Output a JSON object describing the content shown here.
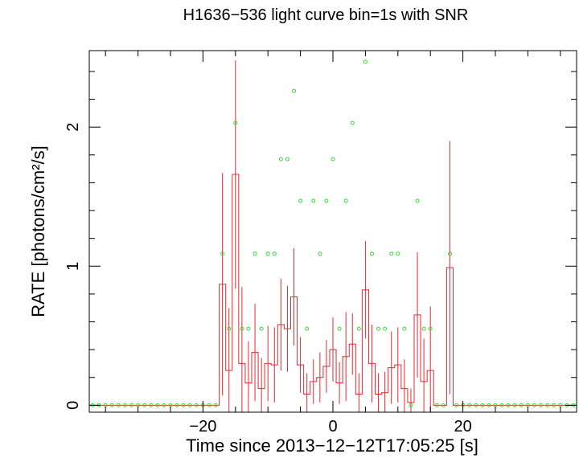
{
  "chart_data": {
    "type": "line",
    "title": "H1636−536 light curve bin=1s with SNR",
    "xlabel": "Time since 2013−12−12T17:05:25 [s]",
    "ylabel": "RATE [photons/cm²/s]",
    "xlim": [
      -37.5,
      37.5
    ],
    "ylim": [
      -0.05,
      2.55
    ],
    "x_ticks": [
      {
        "value": -20,
        "label": "−20"
      },
      {
        "value": 0,
        "label": "0"
      },
      {
        "value": 20,
        "label": "20"
      }
    ],
    "y_ticks": [
      {
        "value": 0,
        "label": "0"
      },
      {
        "value": 1,
        "label": "1"
      },
      {
        "value": 2,
        "label": "2"
      }
    ],
    "grid": false,
    "colors": {
      "rate": "#e8272f",
      "snr": "#33dd33",
      "axes": "#000000"
    },
    "series": [
      {
        "key": "rate",
        "style": "step-with-errorbars",
        "x": [
          -37,
          -36,
          -35,
          -34,
          -33,
          -32,
          -31,
          -30,
          -29,
          -28,
          -27,
          -26,
          -25,
          -24,
          -23,
          -22,
          -21,
          -20,
          -19,
          -18,
          -17,
          -16,
          -15,
          -14,
          -13,
          -12,
          -11,
          -10,
          -9,
          -8,
          -7,
          -6,
          -5,
          -4,
          -3,
          -2,
          -1,
          0,
          1,
          2,
          3,
          4,
          5,
          6,
          7,
          8,
          9,
          10,
          11,
          12,
          13,
          14,
          15,
          16,
          17,
          18,
          19,
          20,
          21,
          22,
          23,
          24,
          25,
          26,
          27,
          28,
          29,
          30,
          31,
          32,
          33,
          34,
          35,
          36,
          37
        ],
        "values": [
          0,
          0,
          0,
          0,
          0,
          0,
          0,
          0,
          0,
          0,
          0,
          0,
          0,
          0,
          0,
          0,
          0,
          0,
          0,
          0,
          0.87,
          0.25,
          1.66,
          0.3,
          0.16,
          0.38,
          0.12,
          0.3,
          0.29,
          0.58,
          0.55,
          0.78,
          0.29,
          0.08,
          0.17,
          0.2,
          0.28,
          0.4,
          0.16,
          0.35,
          0.44,
          0.08,
          0.83,
          0.3,
          0.08,
          0.09,
          0.27,
          0.29,
          0.12,
          0.02,
          0.65,
          0.17,
          0.25,
          0,
          0,
          0.99,
          0,
          0,
          0,
          0,
          0,
          0,
          0,
          0,
          0,
          0,
          0,
          0,
          0,
          0,
          0,
          0,
          0,
          0,
          0
        ],
        "errors": [
          0,
          0,
          0,
          0,
          0,
          0,
          0,
          0,
          0,
          0,
          0,
          0,
          0,
          0,
          0,
          0,
          0,
          0,
          0,
          0,
          0.8,
          0.45,
          0.82,
          0.55,
          0.3,
          0.35,
          0.22,
          0.27,
          0.27,
          0.33,
          0.31,
          0.35,
          0.2,
          0.15,
          0.16,
          0.18,
          0.19,
          0.23,
          0.15,
          0.32,
          0.22,
          0.15,
          0.35,
          0.28,
          0.15,
          0.15,
          0.26,
          0.27,
          0.21,
          0.1,
          0.45,
          0.31,
          0.46,
          0,
          0,
          0.91,
          0,
          0,
          0,
          0,
          0,
          0,
          0,
          0,
          0,
          0,
          0,
          0,
          0,
          0,
          0,
          0,
          0,
          0,
          0
        ]
      },
      {
        "key": "snr",
        "style": "markers",
        "x": [
          -37,
          -36,
          -35,
          -34,
          -33,
          -32,
          -31,
          -30,
          -29,
          -28,
          -27,
          -26,
          -25,
          -24,
          -23,
          -22,
          -21,
          -20,
          -19,
          -18,
          -17,
          -16,
          -15,
          -14,
          -13,
          -12,
          -11,
          -10,
          -9,
          -8,
          -7,
          -6,
          -5,
          -4,
          -3,
          -2,
          -1,
          0,
          1,
          2,
          3,
          4,
          5,
          6,
          7,
          8,
          9,
          10,
          11,
          12,
          13,
          14,
          15,
          16,
          17,
          18,
          19,
          20,
          21,
          22,
          23,
          24,
          25,
          26,
          27,
          28,
          29,
          30,
          31,
          32,
          33,
          34,
          35,
          36,
          37
        ],
        "values": [
          0,
          0,
          0,
          0,
          0,
          0,
          0,
          0,
          0,
          0,
          0,
          0,
          0,
          0,
          0,
          0,
          0,
          0,
          0,
          0,
          1.09,
          0.55,
          2.03,
          0.55,
          0.55,
          1.09,
          0.55,
          1.09,
          1.09,
          1.77,
          1.77,
          2.26,
          1.47,
          0.55,
          1.47,
          1.09,
          1.47,
          1.77,
          0.55,
          1.47,
          2.03,
          0.55,
          2.47,
          1.09,
          0.55,
          0.55,
          1.09,
          1.09,
          0.55,
          0,
          1.47,
          0.55,
          0.55,
          0,
          0,
          1.09,
          0,
          0,
          0,
          0,
          0,
          0,
          0,
          0,
          0,
          0,
          0,
          0,
          0,
          0,
          0,
          0,
          0,
          0,
          0
        ]
      }
    ]
  }
}
